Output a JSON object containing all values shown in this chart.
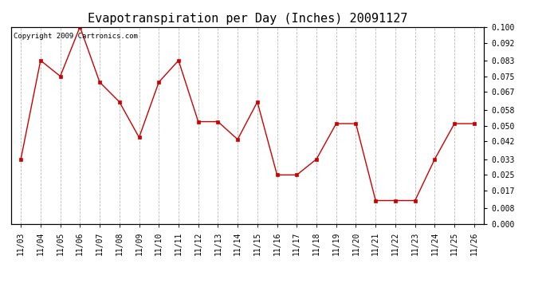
{
  "title": "Evapotranspiration per Day (Inches) 20091127",
  "copyright": "Copyright 2009 Cartronics.com",
  "x_labels": [
    "11/03",
    "11/04",
    "11/05",
    "11/06",
    "11/07",
    "11/08",
    "11/09",
    "11/10",
    "11/11",
    "11/12",
    "11/13",
    "11/14",
    "11/15",
    "11/16",
    "11/17",
    "11/18",
    "11/19",
    "11/20",
    "11/21",
    "11/22",
    "11/23",
    "11/24",
    "11/25",
    "11/26"
  ],
  "y_values": [
    0.033,
    0.083,
    0.075,
    0.1,
    0.072,
    0.062,
    0.044,
    0.072,
    0.083,
    0.052,
    0.052,
    0.043,
    0.062,
    0.025,
    0.025,
    0.033,
    0.051,
    0.051,
    0.012,
    0.012,
    0.012,
    0.033,
    0.051,
    0.051
  ],
  "line_color": "#cc0000",
  "marker": "s",
  "marker_size": 2.5,
  "ylim": [
    0.0,
    0.1
  ],
  "yticks": [
    0.0,
    0.008,
    0.017,
    0.025,
    0.033,
    0.042,
    0.05,
    0.058,
    0.067,
    0.075,
    0.083,
    0.092,
    0.1
  ],
  "grid_color": "#bbbbbb",
  "bg_color": "#ffffff",
  "title_fontsize": 11,
  "copyright_fontsize": 6.5,
  "tick_fontsize": 7
}
